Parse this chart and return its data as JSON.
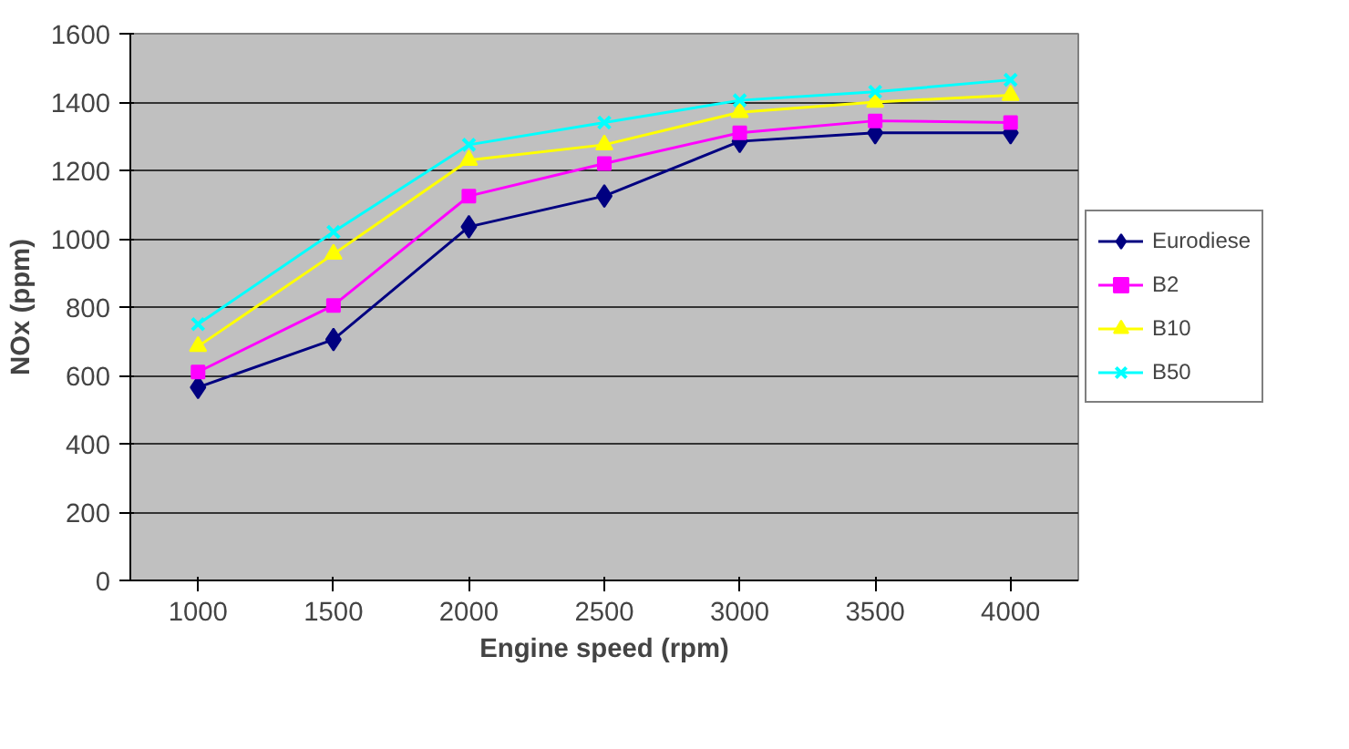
{
  "chart_data": {
    "type": "line",
    "xlabel": "Engine speed (rpm)",
    "ylabel": "NOx (ppm)",
    "categories": [
      "1000",
      "1500",
      "2000",
      "2500",
      "3000",
      "3500",
      "4000"
    ],
    "ylim": [
      0,
      1600
    ],
    "yticks": [
      0,
      200,
      400,
      600,
      800,
      1000,
      1200,
      1400,
      1600
    ],
    "grid": "y",
    "legend": "right",
    "series": [
      {
        "name": "Eurodiese",
        "color": "#000080",
        "marker": "diamond",
        "values": [
          565,
          705,
          1035,
          1125,
          1285,
          1310,
          1310
        ]
      },
      {
        "name": "B2",
        "color": "#ff00ff",
        "marker": "square",
        "values": [
          610,
          805,
          1125,
          1220,
          1310,
          1345,
          1340
        ]
      },
      {
        "name": "B10",
        "color": "#ffff00",
        "marker": "triangle",
        "values": [
          685,
          955,
          1230,
          1275,
          1370,
          1400,
          1420
        ]
      },
      {
        "name": "B50",
        "color": "#00ffff",
        "marker": "cross",
        "values": [
          750,
          1020,
          1275,
          1340,
          1405,
          1430,
          1465
        ]
      }
    ]
  }
}
